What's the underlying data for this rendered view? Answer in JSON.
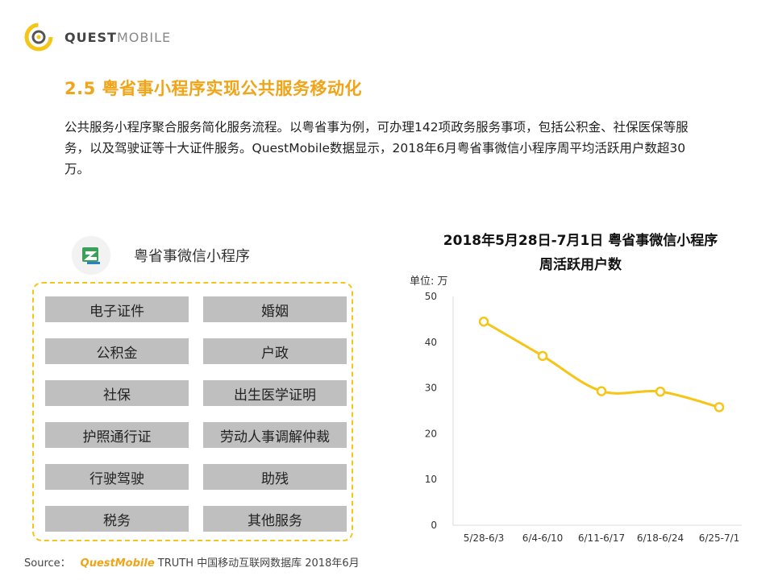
{
  "brand": {
    "logo_part1": "QUEST",
    "logo_part2": "MOBILE",
    "accent": "#f0a417",
    "line_color": "#f5c518"
  },
  "heading": "2.5 粤省事小程序实现公共服务移动化",
  "paragraph": "公共服务小程序聚合服务简化服务流程。以粤省事为例，可办理142项政务服务事项，包括公积金、社保医保等服务，以及驾驶证等十大证件服务。QuestMobile数据显示，2018年6月粤省事微信小程序周平均活跃用户数超30万。",
  "app": {
    "name": "粤省事微信小程序",
    "icon": "yue-sheng-shi-app-icon"
  },
  "services": [
    "电子证件",
    "婚姻",
    "公积金",
    "户政",
    "社保",
    "出生医学证明",
    "护照通行证",
    "劳动人事调解仲裁",
    "行驶驾驶",
    "助残",
    "税务",
    "其他服务"
  ],
  "chart_data": {
    "type": "line",
    "title_line1": "2018年5月28日-7月1日 粤省事微信小程序",
    "title_line2": "周活跃用户数",
    "unit_label": "单位: 万",
    "categories": [
      "5/28-6/3",
      "6/4-6/10",
      "6/11-6/17",
      "6/18-6/24",
      "6/25-7/1"
    ],
    "values": [
      44.5,
      37,
      29.3,
      29.2,
      25.8
    ],
    "ylim": [
      0,
      50
    ],
    "yticks": [
      0,
      10,
      20,
      30,
      40,
      50
    ],
    "grid": false,
    "color": "#f5c518"
  },
  "source": {
    "label": "Source：",
    "brand": "QuestMobile",
    "text": "TRUTH 中国移动互联网数据库 2018年6月"
  }
}
